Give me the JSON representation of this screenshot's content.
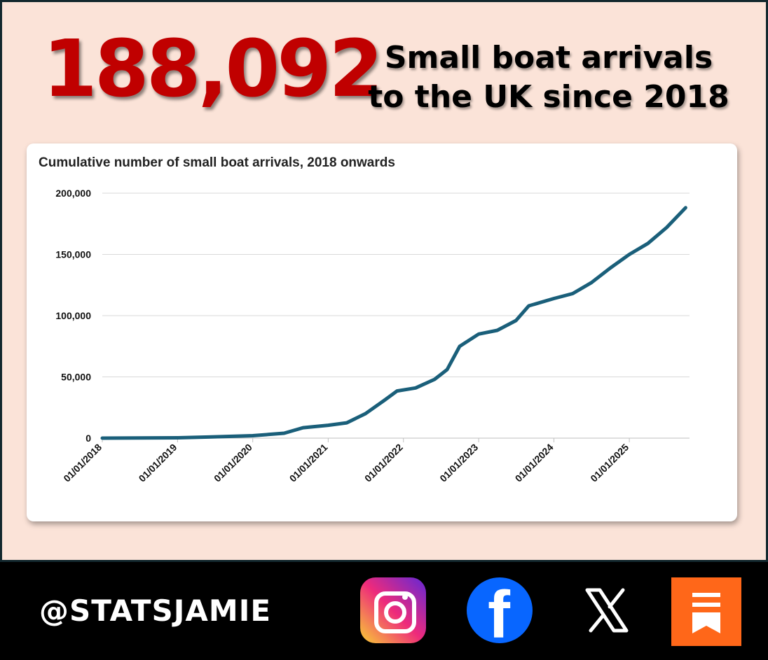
{
  "headline_number": "188,092",
  "headline_text": "Small boat arrivals to the UK since 2018",
  "footer": {
    "handle": "@STATSJAMIE",
    "icons": [
      "instagram-icon",
      "facebook-icon",
      "x-icon",
      "substack-icon"
    ]
  },
  "colors": {
    "background": "#fbe3d8",
    "number": "#c00000",
    "line": "#1a5f7a",
    "footer": "#000000"
  },
  "chart_data": {
    "type": "line",
    "title": "Cumulative number of small boat arrivals, 2018 onwards",
    "xlabel": "",
    "ylabel": "",
    "ylim": [
      0,
      200000
    ],
    "yticks": [
      "0",
      "50,000",
      "100,000",
      "150,000",
      "200,000"
    ],
    "xticks": [
      "01/01/2018",
      "01/01/2019",
      "01/01/2020",
      "01/01/2021",
      "01/01/2022",
      "01/01/2023",
      "01/01/2024",
      "01/01/2025"
    ],
    "grid": true,
    "series": [
      {
        "values": [
          {
            "x": "2018-01-01",
            "y": 0
          },
          {
            "x": "2019-01-01",
            "y": 300
          },
          {
            "x": "2019-06-01",
            "y": 900
          },
          {
            "x": "2020-01-01",
            "y": 2000
          },
          {
            "x": "2020-06-01",
            "y": 4000
          },
          {
            "x": "2020-09-01",
            "y": 8500
          },
          {
            "x": "2021-01-01",
            "y": 10500
          },
          {
            "x": "2021-04-01",
            "y": 12500
          },
          {
            "x": "2021-07-01",
            "y": 20000
          },
          {
            "x": "2021-10-01",
            "y": 31000
          },
          {
            "x": "2021-12-01",
            "y": 38500
          },
          {
            "x": "2022-03-01",
            "y": 41000
          },
          {
            "x": "2022-06-01",
            "y": 48000
          },
          {
            "x": "2022-08-01",
            "y": 56000
          },
          {
            "x": "2022-10-01",
            "y": 75000
          },
          {
            "x": "2023-01-01",
            "y": 85000
          },
          {
            "x": "2023-04-01",
            "y": 88000
          },
          {
            "x": "2023-07-01",
            "y": 96000
          },
          {
            "x": "2023-09-01",
            "y": 108000
          },
          {
            "x": "2024-01-01",
            "y": 114000
          },
          {
            "x": "2024-04-01",
            "y": 118000
          },
          {
            "x": "2024-07-01",
            "y": 127000
          },
          {
            "x": "2024-10-01",
            "y": 139000
          },
          {
            "x": "2025-01-01",
            "y": 150000
          },
          {
            "x": "2025-04-01",
            "y": 159000
          },
          {
            "x": "2025-07-01",
            "y": 172000
          },
          {
            "x": "2025-10-01",
            "y": 188092
          }
        ]
      }
    ]
  }
}
